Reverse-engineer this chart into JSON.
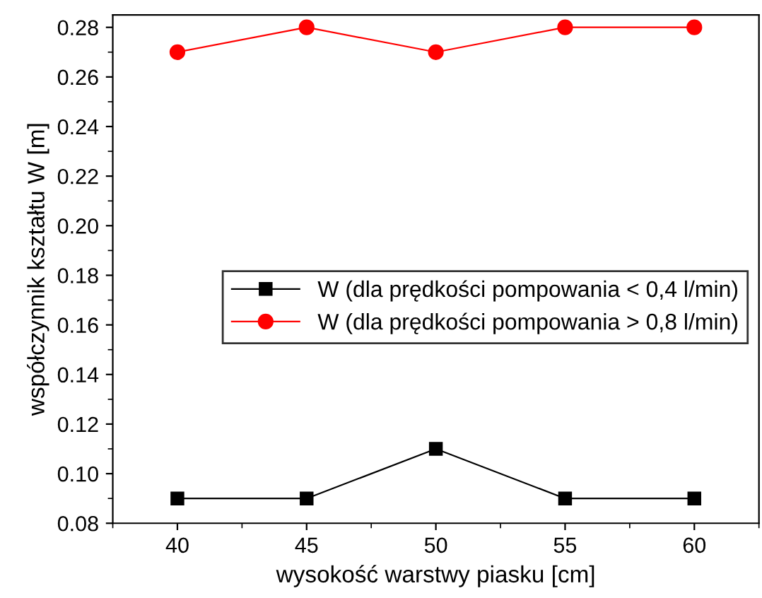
{
  "chart_data": {
    "type": "line",
    "xlabel": "wysokość warstwy piasku [cm]",
    "ylabel": "współczynnik kształtu W [m]",
    "x": [
      40,
      45,
      50,
      55,
      60
    ],
    "series": [
      {
        "name": "W (dla prędkości pompowania < 0,4 l/min)",
        "color": "#000000",
        "marker": "square",
        "values": [
          0.09,
          0.09,
          0.11,
          0.09,
          0.09
        ]
      },
      {
        "name": "W (dla prędkości pompowania > 0,8 l/min)",
        "color": "#ff0000",
        "marker": "circle",
        "values": [
          0.27,
          0.28,
          0.27,
          0.28,
          0.28
        ]
      }
    ],
    "xlim": [
      37.5,
      62.5
    ],
    "xticks": [
      40,
      45,
      50,
      55,
      60
    ],
    "ylim": [
      0.08,
      0.285
    ],
    "yticks": [
      {
        "value": 0.08,
        "label": "0.08"
      },
      {
        "value": 0.1,
        "label": "0.10"
      },
      {
        "value": 0.12,
        "label": "0.12"
      },
      {
        "value": 0.14,
        "label": "0.14"
      },
      {
        "value": 0.16,
        "label": "0.16"
      },
      {
        "value": 0.18,
        "label": "0.18"
      },
      {
        "value": 0.2,
        "label": "0.20"
      },
      {
        "value": 0.22,
        "label": "0.22"
      },
      {
        "value": 0.24,
        "label": "0.24"
      },
      {
        "value": 0.26,
        "label": "0.26"
      },
      {
        "value": 0.28,
        "label": "0.28"
      }
    ],
    "grid": false,
    "legend": "center right",
    "line_style": "solid"
  }
}
